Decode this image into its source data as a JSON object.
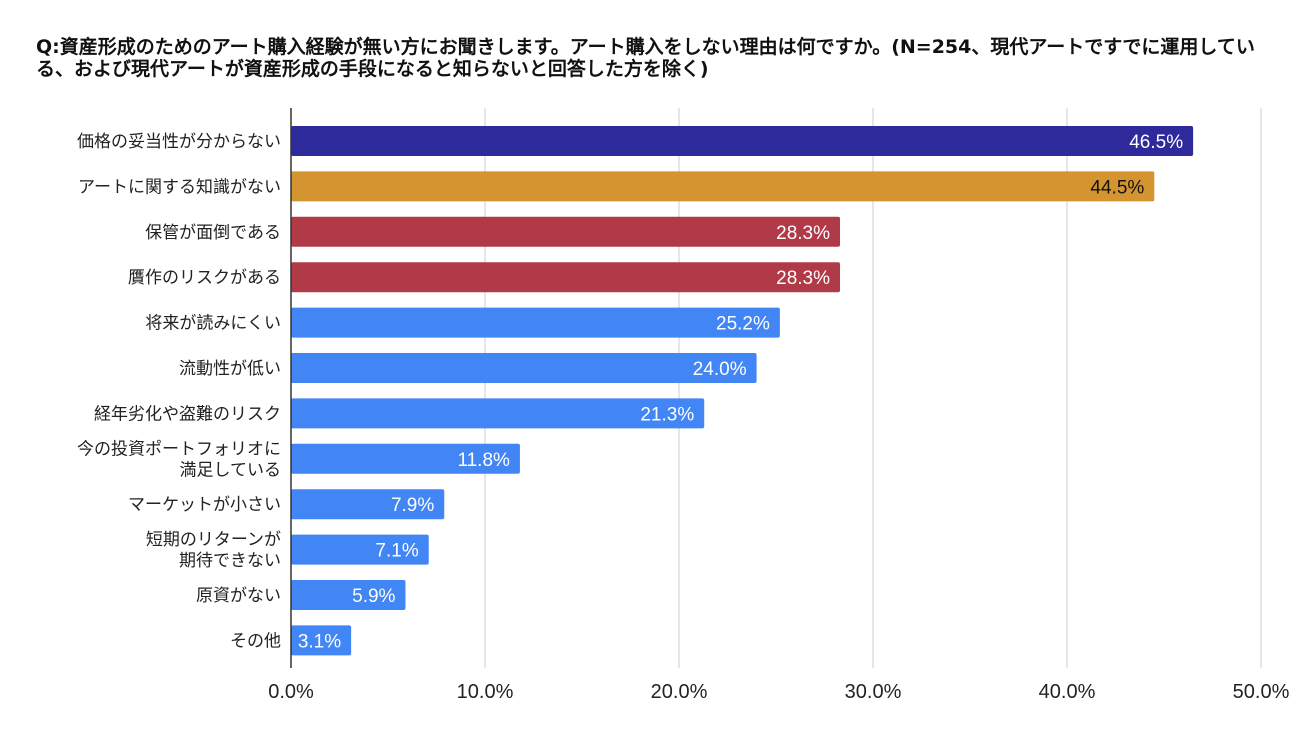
{
  "chart_data": {
    "type": "bar",
    "orientation": "horizontal",
    "title": "Q:資産形成のためのアート購入経験が無い方にお聞きします。アート購入をしない理由は何ですか。(N=254、現代アートですでに運用している、および現代アートが資産形成の手段になると知らないと回答した方を除く)",
    "categories": [
      "価格の妥当性が分からない",
      "アートに関する知識がない",
      "保管が面倒である",
      "贋作のリスクがある",
      "将来が読みにくい",
      "流動性が低い",
      "経年劣化や盗難のリスク",
      "今の投資ポートフォリオに\n満足している",
      "マーケットが小さい",
      "短期のリターンが\n期待できない",
      "原資がない",
      "その他"
    ],
    "values": [
      46.5,
      44.5,
      28.3,
      28.3,
      25.2,
      24.0,
      21.3,
      11.8,
      7.9,
      7.1,
      5.9,
      3.1
    ],
    "value_labels": [
      "46.5%",
      "44.5%",
      "28.3%",
      "28.3%",
      "25.2%",
      "24.0%",
      "21.3%",
      "11.8%",
      "7.9%",
      "7.1%",
      "5.9%",
      "3.1%"
    ],
    "colors": [
      "#2e2a9c",
      "#d49530",
      "#b03a48",
      "#b03a48",
      "#4285f4",
      "#4285f4",
      "#4285f4",
      "#4285f4",
      "#4285f4",
      "#4285f4",
      "#4285f4",
      "#4285f4"
    ],
    "label_colors": [
      "#ffffff",
      "#111111",
      "#ffffff",
      "#ffffff",
      "#ffffff",
      "#ffffff",
      "#ffffff",
      "#ffffff",
      "#ffffff",
      "#ffffff",
      "#ffffff",
      "#ffffff"
    ],
    "xlim": [
      0,
      50
    ],
    "xticks": [
      0,
      10,
      20,
      30,
      40,
      50
    ],
    "xtick_labels": [
      "0.0%",
      "10.0%",
      "20.0%",
      "30.0%",
      "40.0%",
      "50.0%"
    ],
    "grid": true,
    "xlabel": "",
    "ylabel": ""
  }
}
